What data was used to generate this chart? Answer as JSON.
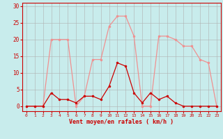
{
  "x": [
    0,
    1,
    2,
    3,
    4,
    5,
    6,
    7,
    8,
    9,
    10,
    11,
    12,
    13,
    14,
    15,
    16,
    17,
    18,
    19,
    20,
    21,
    22,
    23
  ],
  "rafales": [
    0,
    0,
    0,
    20,
    20,
    20,
    0,
    3,
    14,
    14,
    24,
    27,
    27,
    21,
    0,
    0,
    21,
    21,
    20,
    18,
    18,
    14,
    13,
    0
  ],
  "vent_moyen": [
    0,
    0,
    0,
    4,
    2,
    2,
    1,
    3,
    3,
    2,
    6,
    13,
    12,
    4,
    1,
    4,
    2,
    3,
    1,
    0,
    0,
    0,
    0,
    0
  ],
  "bg_color": "#c8ecec",
  "grid_color": "#b0b0b0",
  "line_color_rafales": "#f09090",
  "line_color_vent": "#cc0000",
  "xlabel": "Vent moyen/en rafales ( km/h )",
  "xlabel_color": "#cc0000",
  "tick_color": "#cc0000",
  "yticks": [
    0,
    5,
    10,
    15,
    20,
    25,
    30
  ],
  "xticks": [
    0,
    1,
    2,
    3,
    4,
    5,
    6,
    7,
    8,
    9,
    10,
    11,
    12,
    13,
    14,
    15,
    16,
    17,
    18,
    19,
    20,
    21,
    22,
    23
  ],
  "ylim": [
    -1.5,
    31
  ],
  "xlim": [
    -0.5,
    23.5
  ]
}
